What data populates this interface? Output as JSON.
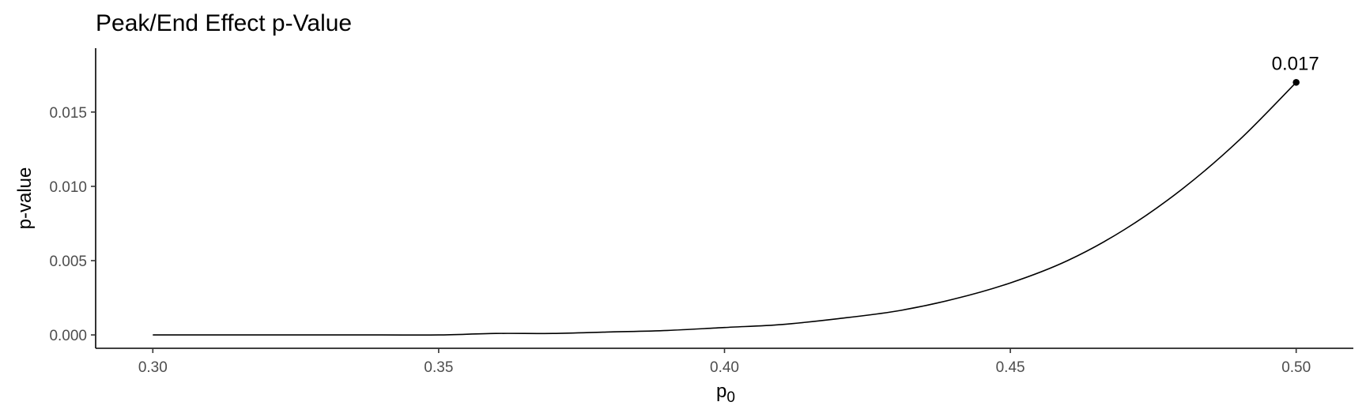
{
  "chart_data": {
    "type": "line",
    "title": "Peak/End Effect p-Value",
    "xlabel": "p",
    "xlabel_subscript": "0",
    "ylabel": "p-value",
    "xlim": [
      0.29,
      0.51
    ],
    "ylim": [
      -0.0009,
      0.0193
    ],
    "xticks": [
      {
        "value": 0.3,
        "label": "0.30"
      },
      {
        "value": 0.35,
        "label": "0.35"
      },
      {
        "value": 0.4,
        "label": "0.40"
      },
      {
        "value": 0.45,
        "label": "0.45"
      },
      {
        "value": 0.5,
        "label": "0.50"
      }
    ],
    "yticks": [
      {
        "value": 0.0,
        "label": "0.000"
      },
      {
        "value": 0.005,
        "label": "0.005"
      },
      {
        "value": 0.01,
        "label": "0.010"
      },
      {
        "value": 0.015,
        "label": "0.015"
      }
    ],
    "grid": false,
    "series": [
      {
        "color": "#000000",
        "x": [
          0.3,
          0.32,
          0.34,
          0.35,
          0.36,
          0.37,
          0.38,
          0.39,
          0.4,
          0.41,
          0.42,
          0.43,
          0.44,
          0.45,
          0.46,
          0.47,
          0.48,
          0.49,
          0.5
        ],
        "y": [
          0.0,
          0.0,
          0.0,
          0.0,
          0.0001,
          0.0001,
          0.0002,
          0.0003,
          0.0005,
          0.0007,
          0.0011,
          0.0016,
          0.0024,
          0.0035,
          0.005,
          0.0071,
          0.0098,
          0.0131,
          0.017
        ]
      }
    ],
    "annotations": [
      {
        "x": 0.5,
        "y": 0.017,
        "label": "0.017"
      }
    ]
  }
}
